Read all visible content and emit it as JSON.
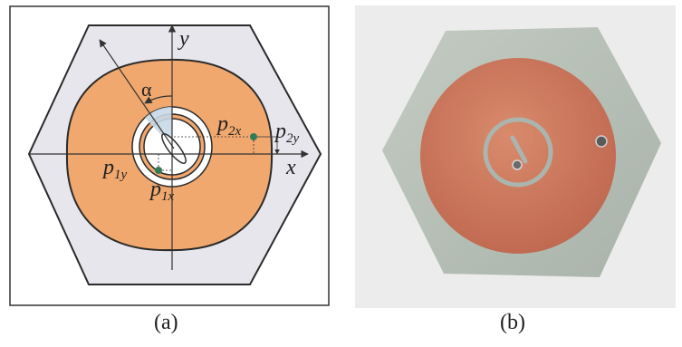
{
  "panel_a": {
    "caption": "(a)",
    "labels": {
      "y_axis": "y",
      "x_axis": "x",
      "alpha": "α",
      "p2x": {
        "base": "p",
        "sub": "2x"
      },
      "p2y": {
        "base": "p",
        "sub": "2y"
      },
      "p1y": {
        "base": "p",
        "sub": "1y"
      },
      "p1x": {
        "base": "p",
        "sub": "1x"
      }
    },
    "colors": {
      "substrate": "#e6e6ec",
      "patch": "#f0a86e",
      "patch_outline": "#2b2b2b",
      "ring": "#c8d8e6",
      "feed_point": "#2e7d57"
    }
  },
  "panel_b": {
    "caption": "(b)",
    "colors": {
      "substrate": "#b8c2b8",
      "copper": "#cf7a5e",
      "background": "#ececec"
    }
  }
}
